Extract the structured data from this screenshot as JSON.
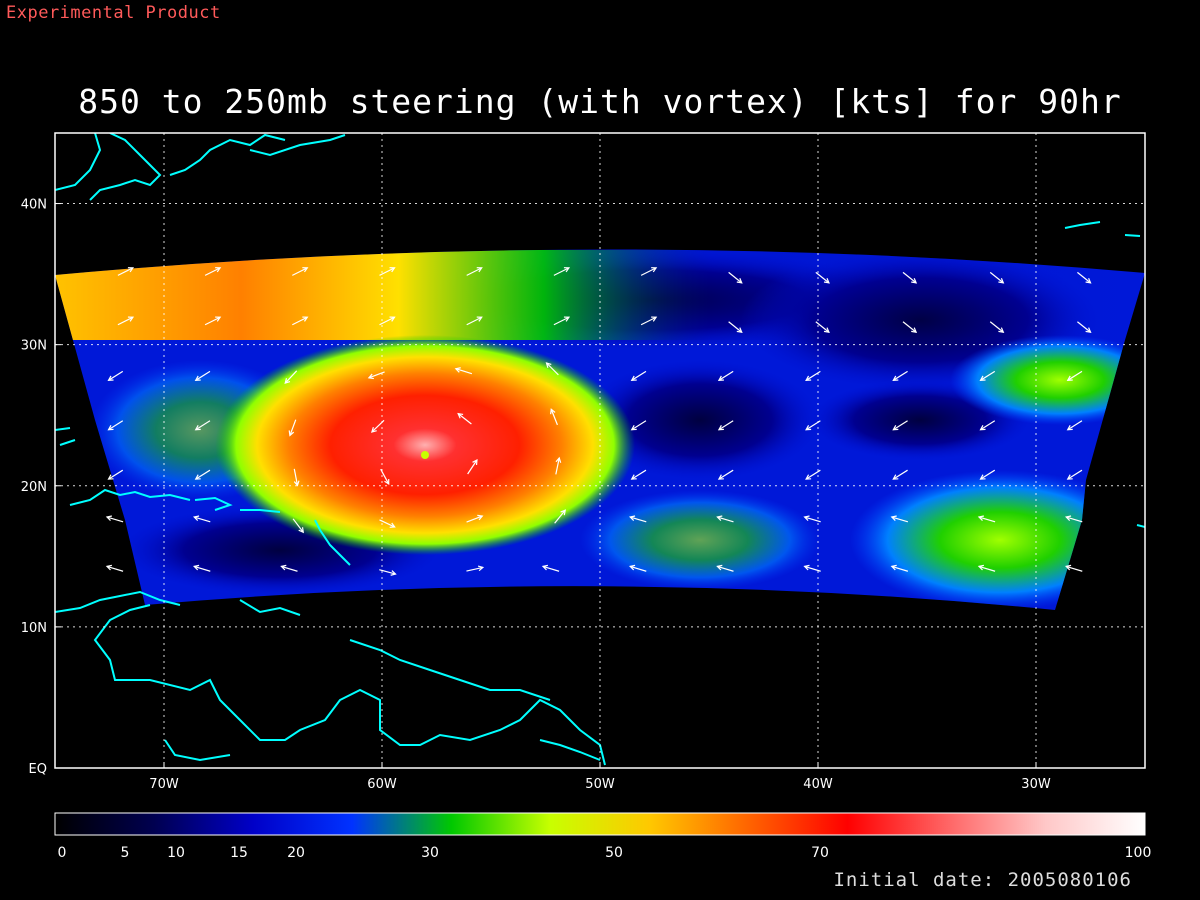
{
  "header": {
    "experimental_label": "Experimental Product",
    "title": "850 to 250mb steering (with vortex) [kts] for 90hr"
  },
  "map": {
    "lon_range": [
      -75,
      -25
    ],
    "lat_range": [
      0,
      45
    ],
    "lat_ticks": [
      {
        "value": 40,
        "label": "40N"
      },
      {
        "value": 30,
        "label": "30N"
      },
      {
        "value": 20,
        "label": "20N"
      },
      {
        "value": 10,
        "label": "10N"
      },
      {
        "value": 0,
        "label": "EQ"
      }
    ],
    "lon_ticks": [
      {
        "value": -70,
        "label": "70W"
      },
      {
        "value": -60,
        "label": "60W"
      },
      {
        "value": -50,
        "label": "50W"
      },
      {
        "value": -40,
        "label": "40W"
      },
      {
        "value": -30,
        "label": "30W"
      }
    ],
    "grid": true,
    "coastline_color": "#00ffff",
    "vortex_center": {
      "lon": -57.8,
      "lat": 22.2
    }
  },
  "colorbar": {
    "tick_labels": [
      {
        "value": 0,
        "label": "0"
      },
      {
        "value": 5,
        "label": "5"
      },
      {
        "value": 10,
        "label": "10"
      },
      {
        "value": 15,
        "label": "15"
      },
      {
        "value": 20,
        "label": "20"
      },
      {
        "value": 30,
        "label": "30"
      },
      {
        "value": 50,
        "label": "50"
      },
      {
        "value": 70,
        "label": "70"
      },
      {
        "value": 100,
        "label": "100"
      }
    ],
    "colors": [
      "#000000",
      "#000050",
      "#0000c8",
      "#0032ff",
      "#00c800",
      "#c8ff00",
      "#ffc800",
      "#ff6400",
      "#ff0000",
      "#ff6464",
      "#ffc8c8",
      "#ffffff"
    ]
  },
  "footer": {
    "initial_date": "Initial date: 2005080106"
  }
}
